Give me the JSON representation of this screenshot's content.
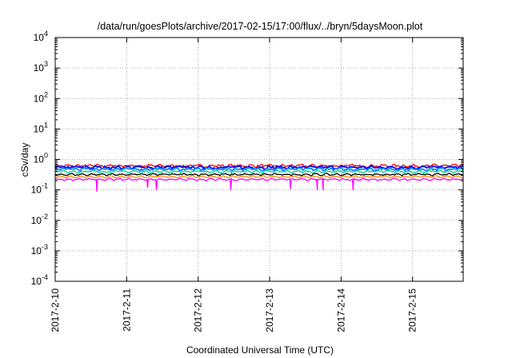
{
  "chart_data": {
    "type": "line",
    "title": "/data/run/goesPlots/archive/2017-02-15/17:00/flux/../bryn/5daysMoon.plot",
    "xlabel": "Coordinated Universal Time (UTC)",
    "ylabel": "cSv/day",
    "yscale": "log",
    "ylim": [
      0.0001,
      10000
    ],
    "xlim": [
      "2017-02-10T00:00",
      "2017-02-15T17:00"
    ],
    "x_ticks": [
      "2017-2-10",
      "2017-2-11",
      "2017-2-12",
      "2017-2-13",
      "2017-2-14",
      "2017-2-15"
    ],
    "y_ticks": [
      {
        "base": "10",
        "exp": "-4"
      },
      {
        "base": "10",
        "exp": "-3"
      },
      {
        "base": "10",
        "exp": "-2"
      },
      {
        "base": "10",
        "exp": "-1"
      },
      {
        "base": "10",
        "exp": "0"
      },
      {
        "base": "10",
        "exp": "1"
      },
      {
        "base": "10",
        "exp": "2"
      },
      {
        "base": "10",
        "exp": "3"
      },
      {
        "base": "10",
        "exp": "4"
      }
    ],
    "grid": true,
    "grid_style": "dotted",
    "legend": "none",
    "series": [
      {
        "color": "#ff0000",
        "level": 0.62,
        "noise": 0.09
      },
      {
        "color": "#0000ff",
        "level": 0.55,
        "noise": 0.09
      },
      {
        "color": "#0088ff",
        "level": 0.48,
        "noise": 0.08
      },
      {
        "color": "#00cc88",
        "level": 0.4,
        "noise": 0.06
      },
      {
        "color": "#000000",
        "level": 0.32,
        "noise": 0.05
      },
      {
        "color": "#ff8800",
        "level": 0.27,
        "noise": 0.04
      },
      {
        "color": "#ff00ff",
        "level": 0.22,
        "noise": 0.05,
        "dips": [
          {
            "date": "2017-02-10T14:00",
            "value": 0.09
          },
          {
            "date": "2017-02-11T07:00",
            "value": 0.12
          },
          {
            "date": "2017-02-11T10:00",
            "value": 0.1
          },
          {
            "date": "2017-02-12T11:00",
            "value": 0.1
          },
          {
            "date": "2017-02-13T07:00",
            "value": 0.11
          },
          {
            "date": "2017-02-13T16:00",
            "value": 0.1
          },
          {
            "date": "2017-02-13T18:00",
            "value": 0.1
          },
          {
            "date": "2017-02-14T04:00",
            "value": 0.1
          }
        ]
      }
    ]
  }
}
